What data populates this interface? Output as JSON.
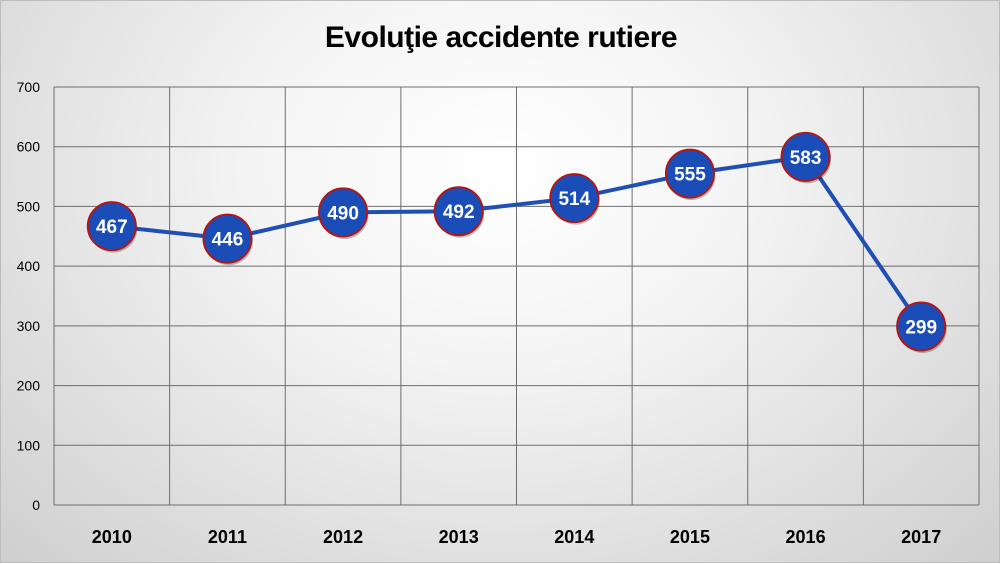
{
  "chart_data": {
    "type": "line",
    "title": "Evoluţie accidente rutiere",
    "categories": [
      "2010",
      "2011",
      "2012",
      "2013",
      "2014",
      "2015",
      "2016",
      "2017"
    ],
    "series": [
      {
        "values": [
          467,
          446,
          490,
          492,
          514,
          555,
          583,
          299
        ]
      }
    ],
    "ylim": [
      0,
      700
    ],
    "yticks": [
      0,
      100,
      200,
      300,
      400,
      500,
      600,
      700
    ],
    "grid": true,
    "data_labels": true,
    "colors": {
      "line": "#1f4fb5",
      "marker_fill": "#1b4db8",
      "marker_border": "#b01818",
      "gridline": "#6e6e6e"
    }
  }
}
